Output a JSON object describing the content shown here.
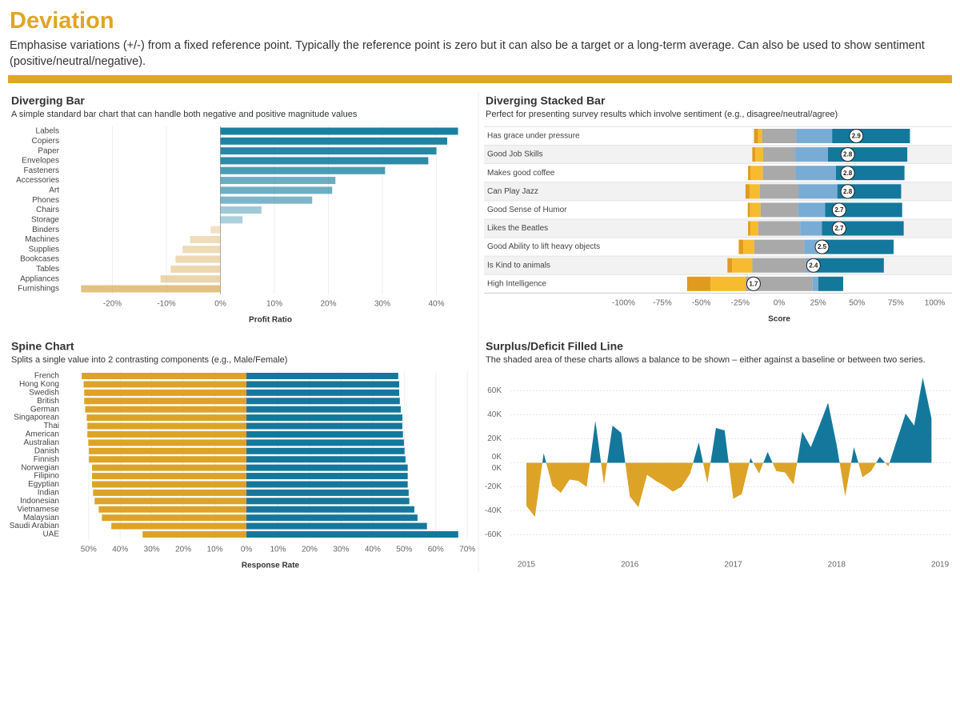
{
  "header": {
    "title": "Deviation",
    "subtitle": "Emphasise variations (+/-) from a fixed reference point. Typically the reference point is zero but it can also be a target or a long-term average. Can also be used to show sentiment (positive/neutral/negative)."
  },
  "chart_data": [
    {
      "type": "bar",
      "title": "Diverging Bar",
      "subtitle": "A simple standard bar chart that can handle both negative and positive magnitude values",
      "categories": [
        "Labels",
        "Copiers",
        "Paper",
        "Envelopes",
        "Fasteners",
        "Accessories",
        "Art",
        "Phones",
        "Chairs",
        "Storage",
        "Binders",
        "Machines",
        "Supplies",
        "Bookcases",
        "Tables",
        "Appliances",
        "Furnishings"
      ],
      "values": [
        44,
        42,
        40,
        38.5,
        30.5,
        21.3,
        20.7,
        17,
        7.6,
        4.1,
        -1.8,
        -5.6,
        -7,
        -8.3,
        -9.2,
        -11.1,
        -25.8
      ],
      "color_positive": "#1a7fa0",
      "color_negative": "#d6a84e",
      "xlabel": "Profit Ratio",
      "xlim": [
        -26,
        46
      ],
      "xticks": [
        {
          "value": -20,
          "label": "-20%"
        },
        {
          "value": -10,
          "label": "-10%"
        },
        {
          "value": 0,
          "label": "0%"
        },
        {
          "value": 10,
          "label": "10%"
        },
        {
          "value": 20,
          "label": "20%"
        },
        {
          "value": 30,
          "label": "30%"
        },
        {
          "value": 40,
          "label": "40%"
        }
      ],
      "grid": true
    },
    {
      "type": "stacked_bar",
      "title": "Diverging Stacked Bar",
      "subtitle": "Perfect for presenting survey results which involve sentiment (e.g., disagree/neutral/agree)",
      "categories": [
        "Has grace under pressure",
        "Good Job Skills",
        "Makes good coffee",
        "Can Play Jazz",
        "Good Sense of Humor",
        "Likes the Beatles",
        "Good Ability to lift heavy objects",
        "Is Kind to animals",
        "High Intelligence"
      ],
      "series": [
        {
          "color": "#e09b1e",
          "values": [
            2.6,
            2,
            1.5,
            2.6,
            1.5,
            1.5,
            3,
            3,
            15
          ]
        },
        {
          "color": "#f7bb2f",
          "values": [
            2.6,
            5,
            8,
            6.7,
            6.7,
            5,
            7,
            13,
            22.7
          ]
        },
        {
          "color": "#a9a9a9",
          "values": [
            22,
            20.6,
            21,
            24.7,
            24,
            27,
            32,
            34.5,
            43
          ]
        },
        {
          "color": "#79acd4",
          "values": [
            23,
            21,
            26,
            25,
            17.5,
            14,
            11,
            6,
            3.6
          ]
        },
        {
          "color": "#14789c",
          "values": [
            50,
            51,
            44,
            41,
            49.5,
            52.5,
            46.5,
            44,
            16
          ]
        }
      ],
      "scores": [
        2.9,
        2.8,
        2.8,
        2.8,
        2.7,
        2.7,
        2.5,
        2.4,
        1.7
      ],
      "score_lim": [
        0,
        4
      ],
      "xlabel": "Score",
      "xlim": [
        -110,
        110
      ],
      "xticks": [
        {
          "value": -100,
          "label": "-100%"
        },
        {
          "value": -75,
          "label": "-75%"
        },
        {
          "value": -50,
          "label": "-50%"
        },
        {
          "value": -25,
          "label": "-25%"
        },
        {
          "value": 0,
          "label": "0%"
        },
        {
          "value": 25,
          "label": "25%"
        },
        {
          "value": 50,
          "label": "50%"
        },
        {
          "value": 75,
          "label": "75%"
        },
        {
          "value": 100,
          "label": "100%"
        }
      ]
    },
    {
      "type": "spine",
      "title": "Spine Chart",
      "subtitle": "Splits a single value into 2 contrasting components (e.g., Male/Female)",
      "categories": [
        "French",
        "Hong Kong",
        "Swedish",
        "British",
        "German",
        "Singaporean",
        "Thai",
        "American",
        "Australian",
        "Danish",
        "Finnish",
        "Norwegian",
        "Filipino",
        "Egyptian",
        "Indian",
        "Indonesian",
        "Vietnamese",
        "Malaysian",
        "Saudi Arabian",
        "UAE"
      ],
      "series": [
        {
          "color": "#dca326",
          "side": "left",
          "values": [
            52.2,
            51.6,
            51.4,
            51.4,
            51.1,
            50.6,
            50.4,
            50.4,
            50.1,
            49.9,
            49.9,
            48.9,
            48.9,
            48.9,
            48.6,
            48.1,
            46.8,
            45.8,
            42.8,
            32.9
          ]
        },
        {
          "color": "#14789c",
          "side": "right",
          "values": [
            48.1,
            48.4,
            48.4,
            48.6,
            48.9,
            49.4,
            49.4,
            49.6,
            49.9,
            50.1,
            50.4,
            51.1,
            51.1,
            51.1,
            51.4,
            51.6,
            53.2,
            54.2,
            57.2,
            67.1
          ]
        }
      ],
      "xlabel": "Response Rate",
      "xlim_left": [
        0,
        54
      ],
      "xlim": [
        0,
        74
      ],
      "xticks_left": [
        {
          "value": 50,
          "label": "50%"
        },
        {
          "value": 40,
          "label": "40%"
        },
        {
          "value": 30,
          "label": "30%"
        },
        {
          "value": 20,
          "label": "20%"
        },
        {
          "value": 10,
          "label": "10%"
        }
      ],
      "xticks": [
        {
          "value": 0,
          "label": "0%"
        },
        {
          "value": 10,
          "label": "10%"
        },
        {
          "value": 20,
          "label": "20%"
        },
        {
          "value": 30,
          "label": "30%"
        },
        {
          "value": 40,
          "label": "40%"
        },
        {
          "value": 50,
          "label": "50%"
        },
        {
          "value": 60,
          "label": "60%"
        },
        {
          "value": 70,
          "label": "70%"
        }
      ],
      "grid": true
    },
    {
      "type": "area",
      "title": "Surplus/Deficit Filled Line",
      "subtitle": "The shaded area of these charts allows a balance to be shown – either against a baseline or between two series.",
      "x": [
        2015,
        2015.083,
        2015.167,
        2015.25,
        2015.333,
        2015.417,
        2015.5,
        2015.583,
        2015.667,
        2015.75,
        2015.833,
        2015.917,
        2016,
        2016.083,
        2016.167,
        2016.25,
        2016.333,
        2016.417,
        2016.5,
        2016.583,
        2016.667,
        2016.75,
        2016.833,
        2016.917,
        2017,
        2017.083,
        2017.167,
        2017.25,
        2017.333,
        2017.417,
        2017.5,
        2017.583,
        2017.667,
        2017.75,
        2017.833,
        2017.917,
        2018,
        2018.083,
        2018.167,
        2018.25,
        2018.333,
        2018.417,
        2018.5,
        2018.583,
        2018.667,
        2018.75,
        2018.833,
        2018.917
      ],
      "values": [
        -36000,
        -45000,
        8000,
        -19000,
        -25000,
        -14000,
        -15000,
        -20000,
        35000,
        -18000,
        31000,
        25000,
        -28000,
        -37000,
        -10000,
        -15000,
        -19000,
        -24000,
        -20000,
        -9000,
        17000,
        -17000,
        29000,
        27000,
        -30000,
        -26000,
        4000,
        -9000,
        9000,
        -7000,
        -8000,
        -18000,
        26000,
        13000,
        31000,
        50000,
        15000,
        -28000,
        13000,
        -12000,
        -7000,
        5000,
        -3000,
        19000,
        41000,
        31000,
        71000,
        37000
      ],
      "color_positive": "#14789c",
      "color_negative": "#dca326",
      "xlim": [
        2014.85,
        2019.1
      ],
      "xticks": [
        2015,
        2016,
        2017,
        2018,
        2019
      ],
      "ylim": [
        -72000,
        74000
      ],
      "yticks": [
        {
          "value": 0,
          "label": "0K"
        },
        {
          "value": 20000,
          "label": "20K"
        },
        {
          "value": 40000,
          "label": "40K"
        },
        {
          "value": 60000,
          "label": "60K"
        }
      ],
      "y2ticks": [
        {
          "value": -60000,
          "label": "-60K"
        },
        {
          "value": -40000,
          "label": "-40K"
        },
        {
          "value": -20000,
          "label": "-20K"
        },
        {
          "value": 0,
          "label": "0K"
        }
      ],
      "grid": true
    }
  ]
}
